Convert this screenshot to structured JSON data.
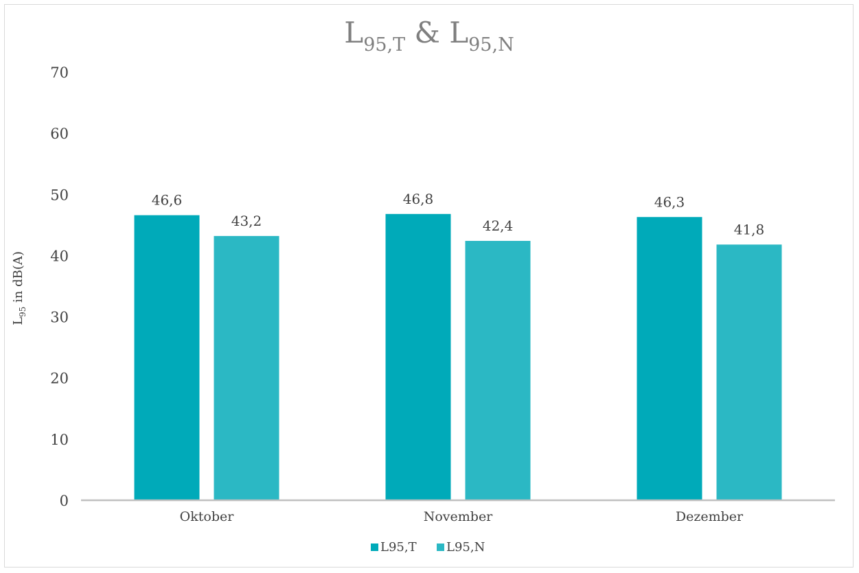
{
  "chart_data": {
    "type": "bar",
    "title": {
      "parts": [
        {
          "text": "L",
          "sub": "95,T"
        },
        {
          "text": " & "
        },
        {
          "text": "L",
          "sub": "95,N"
        }
      ]
    },
    "ylabel": {
      "main": "L",
      "sub": "95",
      "rest": " in dB(A)"
    },
    "xlabel": "",
    "categories": [
      "Oktober",
      "November",
      "Dezember"
    ],
    "ylim": [
      0,
      70
    ],
    "yticks": [
      0,
      10,
      20,
      30,
      40,
      50,
      60,
      70
    ],
    "series": [
      {
        "name": "L95,T",
        "values": [
          46.6,
          46.8,
          46.3
        ],
        "labels": [
          "46,6",
          "46,8",
          "46,3"
        ],
        "color": "#00aab9"
      },
      {
        "name": "L95,N",
        "values": [
          43.2,
          42.4,
          41.8
        ],
        "labels": [
          "43,2",
          "42,4",
          "41,8"
        ],
        "color": "#2bb8c4"
      }
    ],
    "grid": false,
    "legend_position": "bottom"
  }
}
